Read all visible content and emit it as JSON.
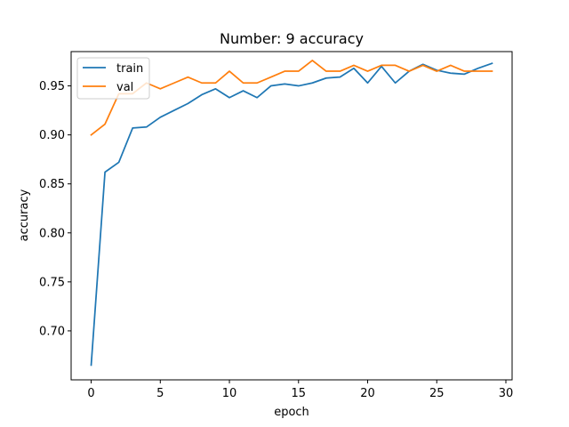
{
  "chart_data": {
    "type": "line",
    "title": "Number: 9 accuracy",
    "xlabel": "epoch",
    "ylabel": "accuracy",
    "xlim": [
      -1.45,
      30.45
    ],
    "ylim": [
      0.65,
      0.985
    ],
    "x_ticks": [
      0,
      5,
      10,
      15,
      20,
      25,
      30
    ],
    "y_ticks": [
      0.7,
      0.75,
      0.8,
      0.85,
      0.9,
      0.95
    ],
    "x_tick_labels": [
      "0",
      "5",
      "10",
      "15",
      "20",
      "25",
      "30"
    ],
    "y_tick_labels": [
      "0.70",
      "0.75",
      "0.80",
      "0.85",
      "0.90",
      "0.95"
    ],
    "grid": false,
    "legend_position": "upper-left",
    "x": [
      0,
      1,
      2,
      3,
      4,
      5,
      6,
      7,
      8,
      9,
      10,
      11,
      12,
      13,
      14,
      15,
      16,
      17,
      18,
      19,
      20,
      21,
      22,
      23,
      24,
      25,
      26,
      27,
      28,
      29
    ],
    "series": [
      {
        "name": "train",
        "color": "#1f77b4",
        "values": [
          0.665,
          0.862,
          0.872,
          0.907,
          0.908,
          0.918,
          0.925,
          0.932,
          0.941,
          0.947,
          0.938,
          0.945,
          0.938,
          0.95,
          0.952,
          0.95,
          0.953,
          0.958,
          0.959,
          0.968,
          0.953,
          0.97,
          0.953,
          0.965,
          0.972,
          0.966,
          0.963,
          0.962,
          0.968,
          0.973
        ]
      },
      {
        "name": "val",
        "color": "#ff7f0e",
        "values": [
          0.9,
          0.911,
          0.942,
          0.942,
          0.953,
          0.947,
          0.953,
          0.959,
          0.953,
          0.953,
          0.965,
          0.953,
          0.953,
          0.959,
          0.965,
          0.965,
          0.976,
          0.965,
          0.965,
          0.971,
          0.965,
          0.971,
          0.971,
          0.965,
          0.971,
          0.965,
          0.971,
          0.965,
          0.965,
          0.965
        ]
      }
    ]
  }
}
